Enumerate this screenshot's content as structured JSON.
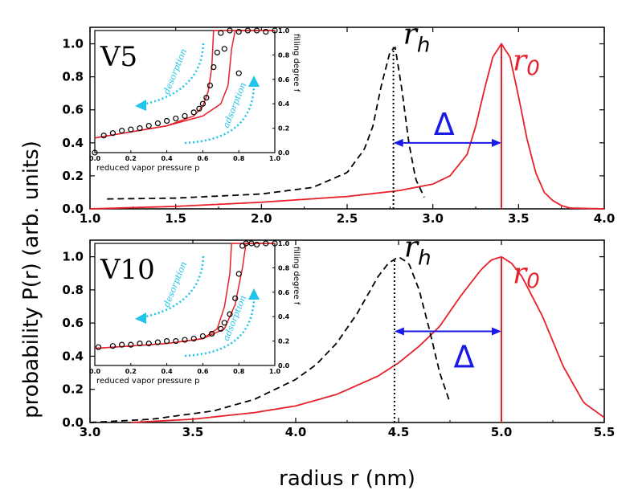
{
  "axes": {
    "ylabel": "probability P(r) (arb. units)",
    "xlabel": "radius r (nm)"
  },
  "chart_data": [
    {
      "type": "line",
      "panel": "top",
      "xlim": [
        1.0,
        4.0
      ],
      "ylim": [
        0.0,
        1.1
      ],
      "xticks": [
        "1.0",
        "1.5",
        "2.0",
        "2.5",
        "3.0",
        "3.5",
        "4.0"
      ],
      "yticks": [
        "0.0",
        "0.2",
        "0.4",
        "0.6",
        "0.8",
        "1.0"
      ],
      "series": [
        {
          "name": "r_0 distribution",
          "color": "#e8202a",
          "style": "solid",
          "x": [
            1.0,
            1.5,
            2.0,
            2.5,
            2.8,
            3.0,
            3.1,
            3.2,
            3.25,
            3.3,
            3.35,
            3.4,
            3.45,
            3.5,
            3.55,
            3.6,
            3.65,
            3.7,
            3.75,
            3.8,
            4.0
          ],
          "y": [
            0.0,
            0.015,
            0.04,
            0.075,
            0.11,
            0.15,
            0.2,
            0.33,
            0.5,
            0.72,
            0.92,
            1.0,
            0.92,
            0.68,
            0.42,
            0.22,
            0.1,
            0.05,
            0.02,
            0.005,
            0.0
          ]
        },
        {
          "name": "r_h distribution",
          "color": "#000000",
          "style": "dashed",
          "x": [
            1.1,
            1.5,
            2.0,
            2.3,
            2.5,
            2.6,
            2.65,
            2.7,
            2.75,
            2.78,
            2.82,
            2.86,
            2.9,
            2.95
          ],
          "y": [
            0.06,
            0.065,
            0.09,
            0.13,
            0.22,
            0.36,
            0.5,
            0.75,
            0.95,
            0.98,
            0.72,
            0.4,
            0.18,
            0.07
          ]
        }
      ],
      "r0_line_x": 3.4,
      "rh_line_x": 2.77,
      "labels": {
        "r0": "r",
        "r0_sub": "0",
        "rh": "r",
        "rh_sub": "h",
        "delta": "Δ"
      }
    },
    {
      "type": "line",
      "panel": "bottom",
      "xlim": [
        3.0,
        5.5
      ],
      "ylim": [
        0.0,
        1.1
      ],
      "xticks": [
        "3.0",
        "3.5",
        "4.0",
        "4.5",
        "5.0",
        "5.5"
      ],
      "yticks": [
        "0.0",
        "0.2",
        "0.4",
        "0.6",
        "0.8",
        "1.0"
      ],
      "series": [
        {
          "name": "r_0 distribution",
          "color": "#e8202a",
          "style": "solid",
          "x": [
            3.2,
            3.5,
            3.8,
            4.0,
            4.2,
            4.4,
            4.5,
            4.6,
            4.7,
            4.8,
            4.9,
            4.95,
            5.0,
            5.05,
            5.1,
            5.2,
            5.3,
            5.4,
            5.5
          ],
          "y": [
            0.0,
            0.02,
            0.06,
            0.1,
            0.17,
            0.28,
            0.36,
            0.46,
            0.58,
            0.76,
            0.92,
            0.98,
            1.0,
            0.96,
            0.88,
            0.64,
            0.34,
            0.12,
            0.03
          ]
        },
        {
          "name": "r_h distribution",
          "color": "#000000",
          "style": "dashed",
          "x": [
            3.0,
            3.3,
            3.6,
            3.8,
            4.0,
            4.1,
            4.2,
            4.3,
            4.4,
            4.45,
            4.5,
            4.55,
            4.6,
            4.65,
            4.7,
            4.75
          ],
          "y": [
            0.0,
            0.02,
            0.07,
            0.14,
            0.26,
            0.35,
            0.48,
            0.66,
            0.88,
            0.96,
            1.0,
            0.96,
            0.8,
            0.56,
            0.3,
            0.12
          ]
        }
      ],
      "r0_line_x": 5.0,
      "rh_line_x": 4.48,
      "labels": {
        "r0": "r",
        "r0_sub": "0",
        "rh": "r",
        "rh_sub": "h",
        "delta": "Δ"
      }
    },
    {
      "type": "scatter",
      "panel": "top-inset",
      "tag": "V5",
      "xlabel": "reduced vapor pressure p",
      "ylabel": "filling degree f",
      "xlim": [
        0.0,
        1.0
      ],
      "ylim": [
        0.0,
        1.0
      ],
      "xticks": [
        "0.0",
        "0.2",
        "0.4",
        "0.6",
        "0.8",
        "1.0"
      ],
      "yticks": [
        "0.0",
        "0.2",
        "0.4",
        "0.6",
        "0.8",
        "1.0"
      ],
      "annotations": {
        "desorption": "desorption",
        "adsorption": "adsorption"
      },
      "points_x": [
        0.0,
        0.05,
        0.1,
        0.15,
        0.2,
        0.25,
        0.3,
        0.35,
        0.4,
        0.45,
        0.5,
        0.55,
        0.58,
        0.6,
        0.62,
        0.64,
        0.66,
        0.68,
        0.7,
        0.75,
        0.8,
        0.85,
        0.9,
        0.95,
        1.0,
        0.72,
        0.8
      ],
      "points_y": [
        0.0,
        0.14,
        0.16,
        0.18,
        0.19,
        0.2,
        0.22,
        0.24,
        0.26,
        0.28,
        0.3,
        0.33,
        0.36,
        0.4,
        0.45,
        0.55,
        0.7,
        0.82,
        0.98,
        1.0,
        0.99,
        1.0,
        1.0,
        0.99,
        1.0,
        0.85,
        0.65
      ],
      "fit_adsorption": {
        "x": [
          0.0,
          0.2,
          0.4,
          0.6,
          0.7,
          0.74,
          0.76,
          0.78,
          1.0
        ],
        "y": [
          0.12,
          0.17,
          0.22,
          0.3,
          0.4,
          0.55,
          0.85,
          1.0,
          1.0
        ]
      },
      "fit_desorption": {
        "x": [
          0.0,
          0.2,
          0.4,
          0.55,
          0.6,
          0.63,
          0.65,
          0.66,
          1.0
        ],
        "y": [
          0.12,
          0.17,
          0.22,
          0.3,
          0.38,
          0.5,
          0.7,
          1.0,
          1.0
        ]
      }
    },
    {
      "type": "scatter",
      "panel": "bottom-inset",
      "tag": "V10",
      "xlabel": "reduced vapor pressure p",
      "ylabel": "filling degree f",
      "xlim": [
        0.0,
        1.0
      ],
      "ylim": [
        0.0,
        1.0
      ],
      "xticks": [
        "0.0",
        "0.2",
        "0.4",
        "0.6",
        "0.8",
        "1.0"
      ],
      "yticks": [
        "0.0",
        "0.2",
        "0.4",
        "0.6",
        "0.8",
        "1.0"
      ],
      "annotations": {
        "desorption": "desorption",
        "adsorption": "adsorption"
      },
      "points_x": [
        0.02,
        0.1,
        0.15,
        0.2,
        0.25,
        0.3,
        0.35,
        0.4,
        0.45,
        0.5,
        0.55,
        0.6,
        0.65,
        0.7,
        0.72,
        0.75,
        0.78,
        0.8,
        0.82,
        0.84,
        0.87,
        0.9,
        0.95,
        1.0
      ],
      "points_y": [
        0.15,
        0.16,
        0.17,
        0.17,
        0.18,
        0.18,
        0.19,
        0.2,
        0.2,
        0.21,
        0.22,
        0.24,
        0.26,
        0.3,
        0.35,
        0.42,
        0.55,
        0.75,
        0.98,
        1.0,
        1.0,
        0.99,
        1.0,
        1.0
      ],
      "fit_adsorption": {
        "x": [
          0.0,
          0.2,
          0.4,
          0.6,
          0.72,
          0.78,
          0.82,
          0.84,
          1.0
        ],
        "y": [
          0.14,
          0.16,
          0.18,
          0.22,
          0.3,
          0.5,
          0.8,
          1.0,
          1.0
        ]
      },
      "fit_desorption": {
        "x": [
          0.0,
          0.2,
          0.4,
          0.6,
          0.68,
          0.72,
          0.75,
          0.76,
          1.0
        ],
        "y": [
          0.14,
          0.16,
          0.18,
          0.22,
          0.3,
          0.48,
          0.75,
          1.0,
          1.0
        ]
      }
    }
  ]
}
